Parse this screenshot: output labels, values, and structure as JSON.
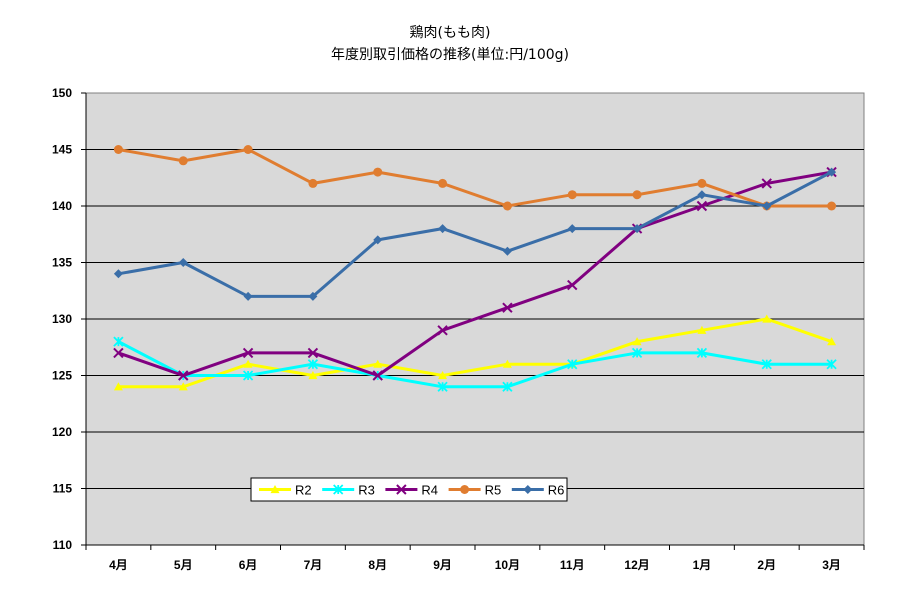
{
  "chart_data": {
    "type": "line",
    "title": "鶏肉(もも肉)",
    "subtitle": "年度別取引価格の推移(単位:円/100g)",
    "xlabel": "",
    "ylabel": "",
    "categories": [
      "4月",
      "5月",
      "6月",
      "7月",
      "8月",
      "9月",
      "10月",
      "11月",
      "12月",
      "1月",
      "2月",
      "3月"
    ],
    "ylim": [
      110,
      150
    ],
    "yticks": [
      110,
      115,
      120,
      125,
      130,
      135,
      140,
      145,
      150
    ],
    "grid": true,
    "legend_position": "bottom-left",
    "plot_background": "#d9d9d9",
    "series": [
      {
        "name": "R2",
        "color": "#ffff00",
        "marker": "triangle",
        "values": [
          124,
          124,
          126,
          125,
          126,
          125,
          126,
          126,
          128,
          129,
          130,
          128
        ]
      },
      {
        "name": "R3",
        "color": "#00ffff",
        "marker": "asterisk",
        "values": [
          128,
          125,
          125,
          126,
          125,
          124,
          124,
          126,
          127,
          127,
          126,
          126
        ]
      },
      {
        "name": "R4",
        "color": "#800080",
        "marker": "x",
        "values": [
          127,
          125,
          127,
          127,
          125,
          129,
          131,
          133,
          138,
          140,
          142,
          143
        ]
      },
      {
        "name": "R5",
        "color": "#e07d30",
        "marker": "circle",
        "values": [
          145,
          144,
          145,
          142,
          143,
          142,
          140,
          141,
          141,
          142,
          140,
          140
        ]
      },
      {
        "name": "R6",
        "color": "#3a6ea8",
        "marker": "diamond",
        "values": [
          134,
          135,
          132,
          132,
          137,
          138,
          136,
          138,
          138,
          141,
          140,
          143
        ]
      }
    ]
  }
}
